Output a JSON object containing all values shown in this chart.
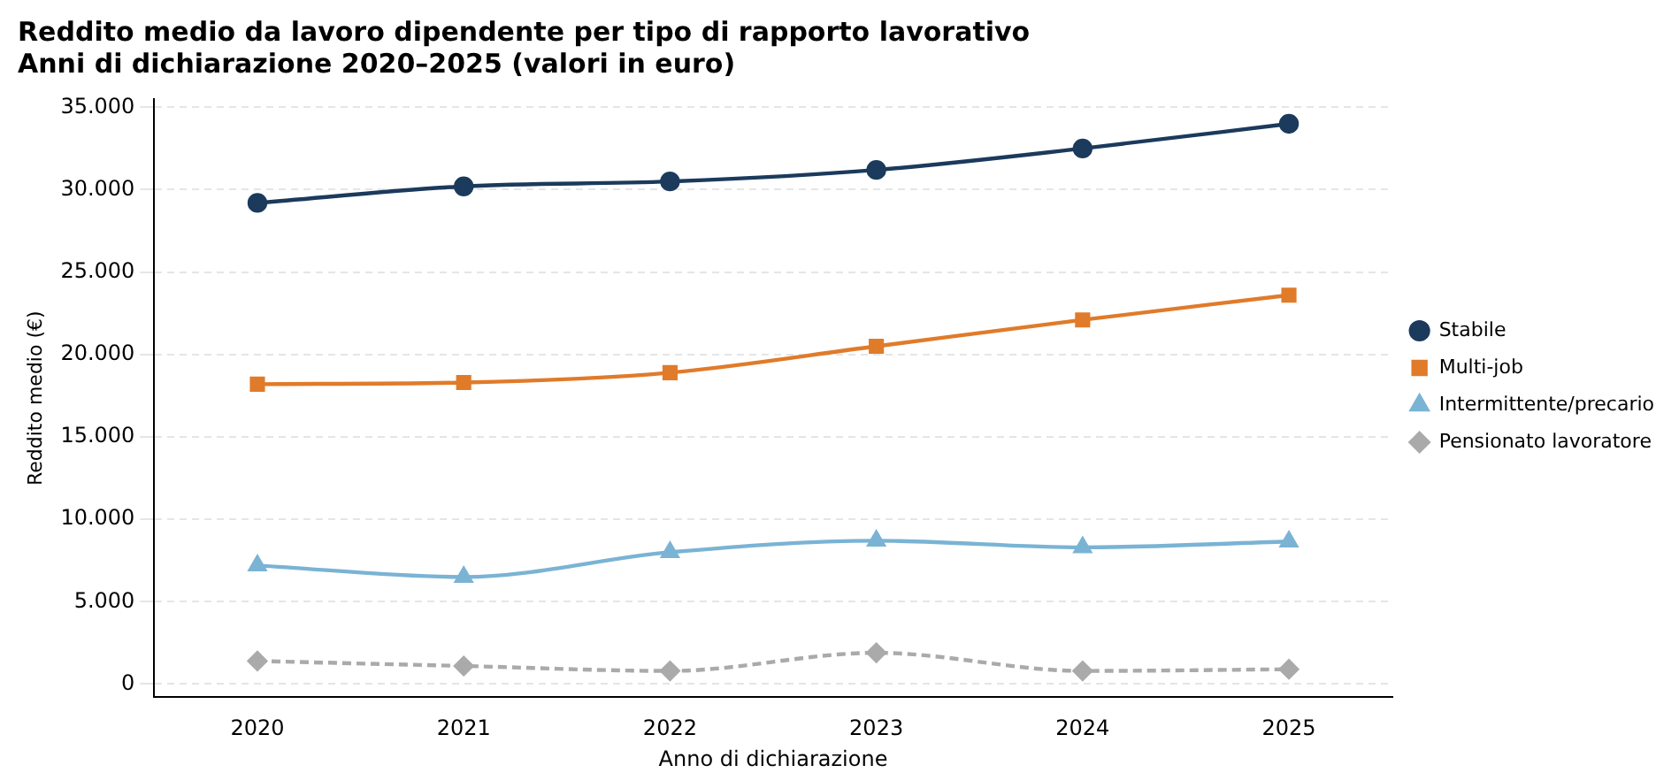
{
  "chart_data": {
    "type": "line",
    "title": "Reddito medio da lavoro dipendente per tipo di rapporto lavorativo",
    "subtitle": "Anni di dichiarazione 2020–2025 (valori in euro)",
    "xlabel": "Anno di dichiarazione",
    "ylabel": "Reddito medio (€)",
    "categories": [
      "2020",
      "2021",
      "2022",
      "2023",
      "2024",
      "2025"
    ],
    "series": [
      {
        "name": "Stabile",
        "color": "#1b3a5c",
        "marker": "circle",
        "line_style": "solid",
        "values": [
          29200,
          30200,
          30500,
          31200,
          32500,
          34000
        ]
      },
      {
        "name": "Multi-job",
        "color": "#e07b2a",
        "marker": "square",
        "line_style": "solid",
        "values": [
          18200,
          18300,
          18900,
          20500,
          22100,
          23600
        ]
      },
      {
        "name": "Intermittente/precario",
        "color": "#7ab3d4",
        "marker": "triangle",
        "line_style": "solid",
        "values": [
          7200,
          6500,
          8000,
          8700,
          8300,
          8650
        ]
      },
      {
        "name": "Pensionato lavoratore",
        "color": "#aaaaaa",
        "marker": "diamond",
        "line_style": "dashed",
        "values": [
          1400,
          1100,
          800,
          1900,
          800,
          900
        ]
      }
    ],
    "ylim": [
      -800,
      35500
    ],
    "yticks": [
      {
        "value": 0,
        "label": "0"
      },
      {
        "value": 5000,
        "label": "5.000"
      },
      {
        "value": 10000,
        "label": "10.000"
      },
      {
        "value": 15000,
        "label": "15.000"
      },
      {
        "value": 20000,
        "label": "20.000"
      },
      {
        "value": 25000,
        "label": "25.000"
      },
      {
        "value": 30000,
        "label": "30.000"
      },
      {
        "value": 35000,
        "label": "35.000"
      }
    ],
    "grid": "y",
    "legend": "right"
  }
}
